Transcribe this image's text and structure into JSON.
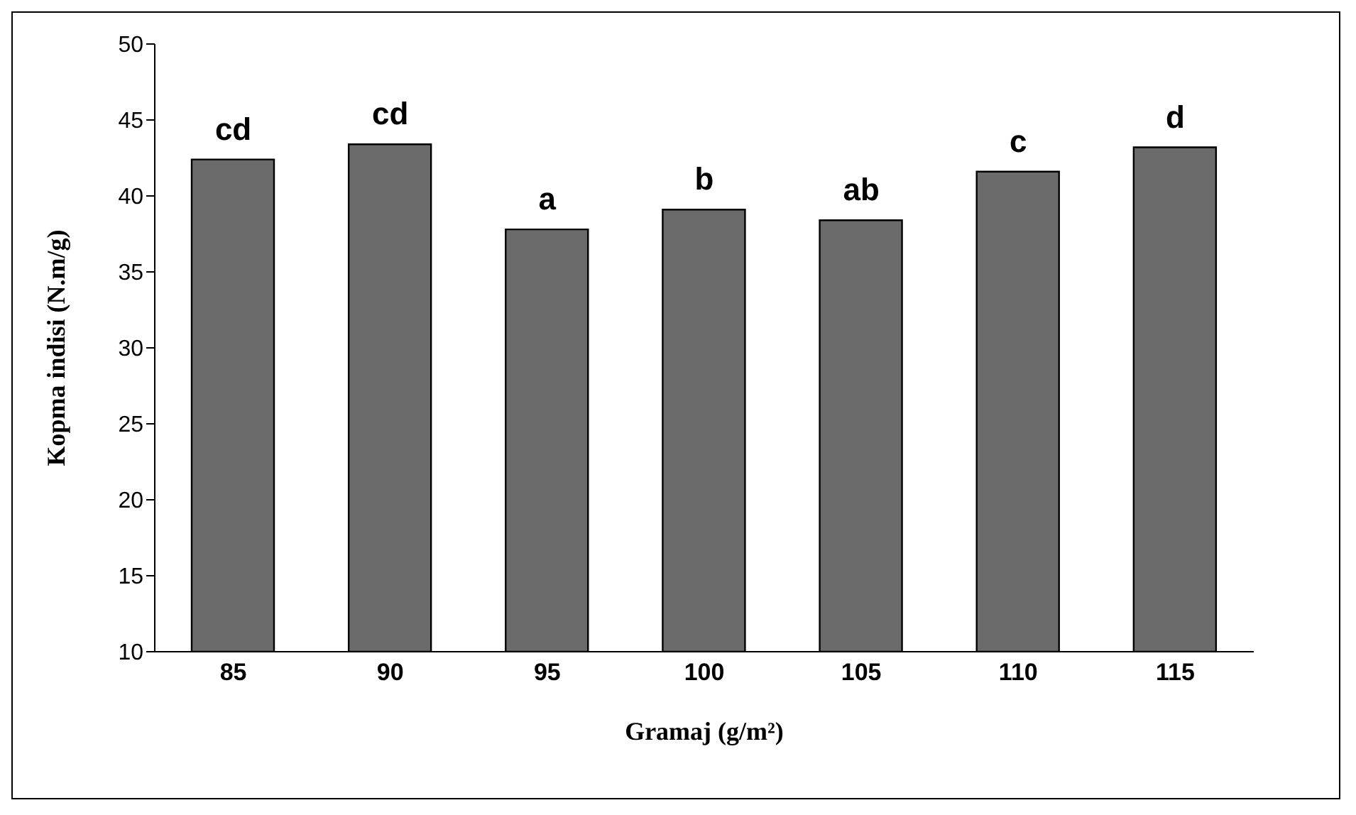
{
  "chart_data": {
    "type": "bar",
    "xlabel": "Gramaj (g/m²)",
    "ylabel": "Kopma indisi (N.m/g)",
    "categories": [
      "85",
      "90",
      "95",
      "100",
      "105",
      "110",
      "115"
    ],
    "values": [
      42.4,
      43.4,
      37.8,
      39.1,
      38.4,
      41.6,
      43.2
    ],
    "color": "#6b6b6b",
    "ylim": [
      10,
      50
    ],
    "yticks": [
      10,
      15,
      20,
      25,
      30,
      35,
      40,
      45,
      50
    ],
    "grid": false,
    "legend": false,
    "annotations": [
      {
        "text": "cd",
        "x": "85",
        "y": 42.4
      },
      {
        "text": "cd",
        "x": "90",
        "y": 43.4
      },
      {
        "text": "a",
        "x": "95",
        "y": 37.8
      },
      {
        "text": "b",
        "x": "100",
        "y": 39.1
      },
      {
        "text": "ab",
        "x": "105",
        "y": 38.4
      },
      {
        "text": "c",
        "x": "110",
        "y": 41.6
      },
      {
        "text": "d",
        "x": "115",
        "y": 43.2
      }
    ]
  }
}
